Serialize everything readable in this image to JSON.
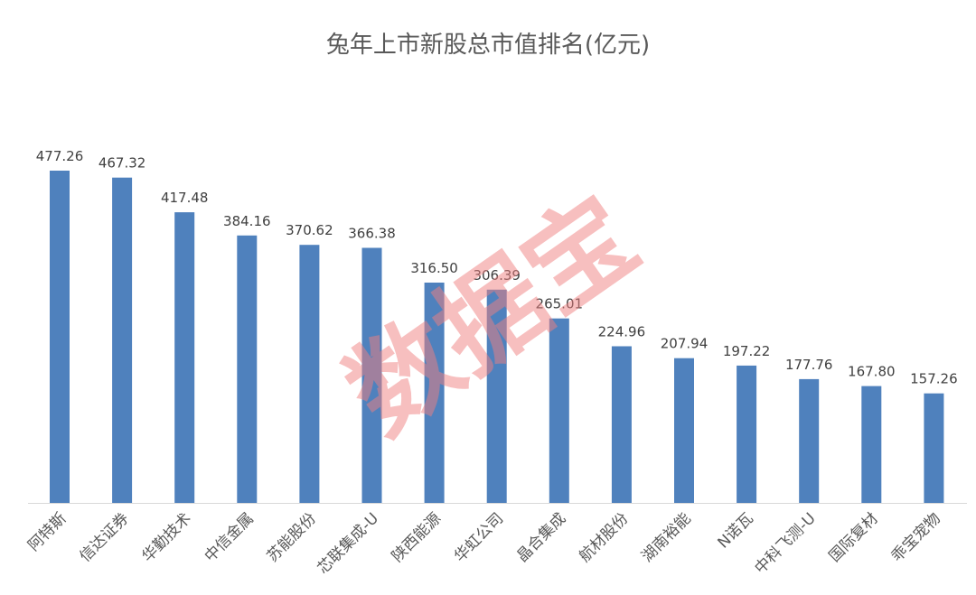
{
  "chart_data": {
    "type": "bar",
    "title": "兔年上市新股总市值排名(亿元)",
    "categories": [
      "阿特斯",
      "信达证券",
      "华勤技术",
      "中信金属",
      "苏能股份",
      "芯联集成-U",
      "陕西能源",
      "华虹公司",
      "晶合集成",
      "航材股份",
      "湖南裕能",
      "N诺瓦",
      "中科飞测-U",
      "国际复材",
      "乖宝宠物"
    ],
    "values": [
      477.26,
      467.32,
      417.48,
      384.16,
      370.62,
      366.38,
      316.5,
      306.39,
      265.01,
      224.96,
      207.94,
      197.22,
      177.76,
      167.8,
      157.26
    ],
    "value_labels": [
      "477.26",
      "467.32",
      "417.48",
      "384.16",
      "370.62",
      "366.38",
      "316.50",
      "306.39",
      "265.01",
      "224.96",
      "207.94",
      "197.22",
      "177.76",
      "167.80",
      "157.26"
    ],
    "xlabel": "",
    "ylabel": "",
    "ylim": [
      0,
      477.26
    ],
    "grid": false,
    "legend": "none",
    "bar_color": "#4f81bd",
    "tick_label_rotation": "-45deg"
  },
  "watermark": {
    "text": "数据宝",
    "color": "#f08080"
  }
}
